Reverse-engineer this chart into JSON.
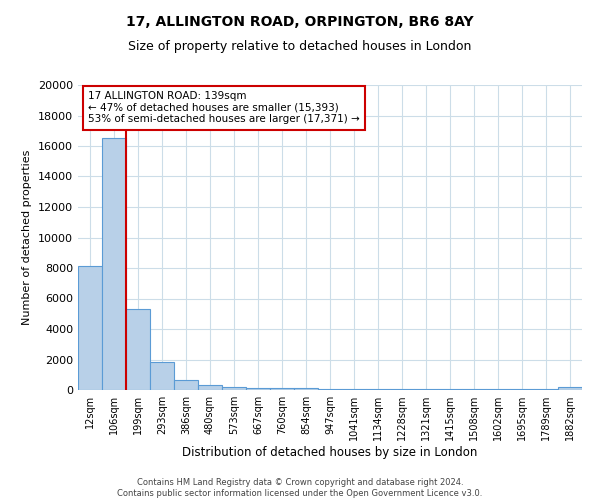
{
  "title1": "17, ALLINGTON ROAD, ORPINGTON, BR6 8AY",
  "title2": "Size of property relative to detached houses in London",
  "xlabel": "Distribution of detached houses by size in London",
  "ylabel": "Number of detached properties",
  "categories": [
    "12sqm",
    "106sqm",
    "199sqm",
    "293sqm",
    "386sqm",
    "480sqm",
    "573sqm",
    "667sqm",
    "760sqm",
    "854sqm",
    "947sqm",
    "1041sqm",
    "1134sqm",
    "1228sqm",
    "1321sqm",
    "1415sqm",
    "1508sqm",
    "1602sqm",
    "1695sqm",
    "1789sqm",
    "1882sqm"
  ],
  "values": [
    8100,
    16500,
    5300,
    1850,
    650,
    330,
    200,
    160,
    130,
    110,
    95,
    80,
    70,
    65,
    60,
    55,
    55,
    50,
    45,
    40,
    180
  ],
  "bar_color": "#b8d0e8",
  "bar_edge_color": "#5b9bd5",
  "vline_x": 1.5,
  "vline_color": "#cc0000",
  "annotation_text": "17 ALLINGTON ROAD: 139sqm\n← 47% of detached houses are smaller (15,393)\n53% of semi-detached houses are larger (17,371) →",
  "annotation_box_color": "#cc0000",
  "ylim": [
    0,
    20000
  ],
  "yticks": [
    0,
    2000,
    4000,
    6000,
    8000,
    10000,
    12000,
    14000,
    16000,
    18000,
    20000
  ],
  "footer": "Contains HM Land Registry data © Crown copyright and database right 2024.\nContains public sector information licensed under the Open Government Licence v3.0.",
  "bg_color": "#ffffff",
  "grid_color": "#ccdde8",
  "title1_fontsize": 10,
  "title2_fontsize": 9
}
